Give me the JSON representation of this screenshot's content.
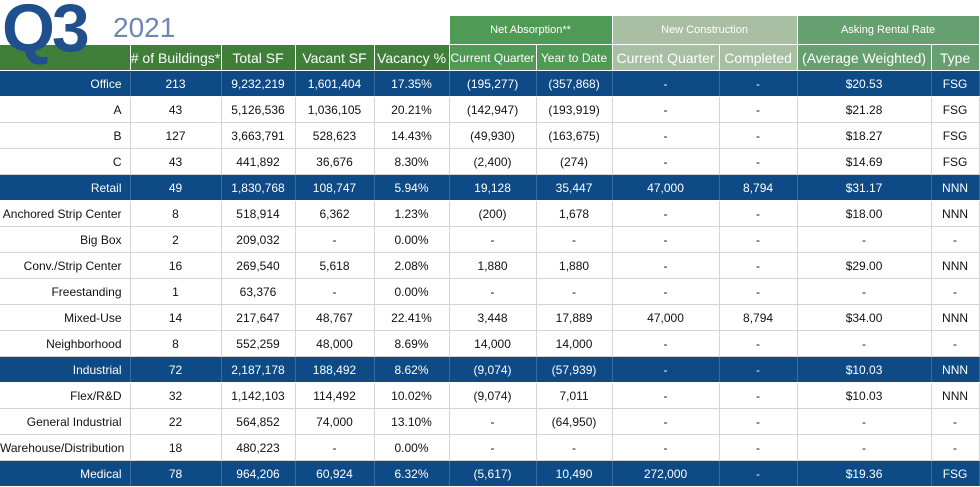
{
  "brand": {
    "quarter": "Q3",
    "year": "2021"
  },
  "groups": {
    "net_absorption": "Net Absorption**",
    "new_construction": "New Construction",
    "asking_rate": "Asking Rental Rate"
  },
  "columns": {
    "buildings": "# of Buildings*",
    "total_sf": "Total SF",
    "vacant_sf": "Vacant SF",
    "vacancy": "Vacancy %",
    "na_cq": "Current Quarter",
    "na_ytd": "Year to Date",
    "nc_cq": "Current Quarter",
    "nc_completed": "Completed",
    "rate": "(Average Weighted)",
    "type": "Type"
  },
  "rows": [
    {
      "label": "Office",
      "cat": true,
      "buildings": "213",
      "total_sf": "9,232,219",
      "vacant_sf": "1,601,404",
      "vacancy": "17.35%",
      "na_cq": "(195,277)",
      "na_ytd": "(357,868)",
      "nc_cq": "-",
      "nc_completed": "-",
      "rate": "$20.53",
      "type": "FSG"
    },
    {
      "label": "A",
      "cat": false,
      "buildings": "43",
      "total_sf": "5,126,536",
      "vacant_sf": "1,036,105",
      "vacancy": "20.21%",
      "na_cq": "(142,947)",
      "na_ytd": "(193,919)",
      "nc_cq": "-",
      "nc_completed": "-",
      "rate": "$21.28",
      "type": "FSG"
    },
    {
      "label": "B",
      "cat": false,
      "buildings": "127",
      "total_sf": "3,663,791",
      "vacant_sf": "528,623",
      "vacancy": "14.43%",
      "na_cq": "(49,930)",
      "na_ytd": "(163,675)",
      "nc_cq": "-",
      "nc_completed": "-",
      "rate": "$18.27",
      "type": "FSG"
    },
    {
      "label": "C",
      "cat": false,
      "buildings": "43",
      "total_sf": "441,892",
      "vacant_sf": "36,676",
      "vacancy": "8.30%",
      "na_cq": "(2,400)",
      "na_ytd": "(274)",
      "nc_cq": "-",
      "nc_completed": "-",
      "rate": "$14.69",
      "type": "FSG"
    },
    {
      "label": "Retail",
      "cat": true,
      "buildings": "49",
      "total_sf": "1,830,768",
      "vacant_sf": "108,747",
      "vacancy": "5.94%",
      "na_cq": "19,128",
      "na_ytd": "35,447",
      "nc_cq": "47,000",
      "nc_completed": "8,794",
      "rate": "$31.17",
      "type": "NNN"
    },
    {
      "label": "Anchored Strip Center",
      "cat": false,
      "buildings": "8",
      "total_sf": "518,914",
      "vacant_sf": "6,362",
      "vacancy": "1.23%",
      "na_cq": "(200)",
      "na_ytd": "1,678",
      "nc_cq": "-",
      "nc_completed": "-",
      "rate": "$18.00",
      "type": "NNN"
    },
    {
      "label": "Big Box",
      "cat": false,
      "buildings": "2",
      "total_sf": "209,032",
      "vacant_sf": "-",
      "vacancy": "0.00%",
      "na_cq": "-",
      "na_ytd": "-",
      "nc_cq": "-",
      "nc_completed": "-",
      "rate": "-",
      "type": "-"
    },
    {
      "label": "Conv./Strip Center",
      "cat": false,
      "buildings": "16",
      "total_sf": "269,540",
      "vacant_sf": "5,618",
      "vacancy": "2.08%",
      "na_cq": "1,880",
      "na_ytd": "1,880",
      "nc_cq": "-",
      "nc_completed": "-",
      "rate": "$29.00",
      "type": "NNN"
    },
    {
      "label": "Freestanding",
      "cat": false,
      "buildings": "1",
      "total_sf": "63,376",
      "vacant_sf": "-",
      "vacancy": "0.00%",
      "na_cq": "-",
      "na_ytd": "-",
      "nc_cq": "-",
      "nc_completed": "-",
      "rate": "-",
      "type": "-"
    },
    {
      "label": "Mixed-Use",
      "cat": false,
      "buildings": "14",
      "total_sf": "217,647",
      "vacant_sf": "48,767",
      "vacancy": "22.41%",
      "na_cq": "3,448",
      "na_ytd": "17,889",
      "nc_cq": "47,000",
      "nc_completed": "8,794",
      "rate": "$34.00",
      "type": "NNN"
    },
    {
      "label": "Neighborhood",
      "cat": false,
      "buildings": "8",
      "total_sf": "552,259",
      "vacant_sf": "48,000",
      "vacancy": "8.69%",
      "na_cq": "14,000",
      "na_ytd": "14,000",
      "nc_cq": "-",
      "nc_completed": "-",
      "rate": "-",
      "type": "-"
    },
    {
      "label": "Industrial",
      "cat": true,
      "buildings": "72",
      "total_sf": "2,187,178",
      "vacant_sf": "188,492",
      "vacancy": "8.62%",
      "na_cq": "(9,074)",
      "na_ytd": "(57,939)",
      "nc_cq": "-",
      "nc_completed": "-",
      "rate": "$10.03",
      "type": "NNN"
    },
    {
      "label": "Flex/R&D",
      "cat": false,
      "buildings": "32",
      "total_sf": "1,142,103",
      "vacant_sf": "114,492",
      "vacancy": "10.02%",
      "na_cq": "(9,074)",
      "na_ytd": "7,011",
      "nc_cq": "-",
      "nc_completed": "-",
      "rate": "$10.03",
      "type": "NNN"
    },
    {
      "label": "General Industrial",
      "cat": false,
      "buildings": "22",
      "total_sf": "564,852",
      "vacant_sf": "74,000",
      "vacancy": "13.10%",
      "na_cq": "-",
      "na_ytd": "(64,950)",
      "nc_cq": "-",
      "nc_completed": "-",
      "rate": "-",
      "type": "-"
    },
    {
      "label": "Warehouse/Distribution",
      "cat": false,
      "buildings": "18",
      "total_sf": "480,223",
      "vacant_sf": "-",
      "vacancy": "0.00%",
      "na_cq": "-",
      "na_ytd": "-",
      "nc_cq": "-",
      "nc_completed": "-",
      "rate": "-",
      "type": "-"
    },
    {
      "label": "Medical",
      "cat": true,
      "buildings": "78",
      "total_sf": "964,206",
      "vacant_sf": "60,924",
      "vacancy": "6.32%",
      "na_cq": "(5,617)",
      "na_ytd": "10,490",
      "nc_cq": "272,000",
      "nc_completed": "-",
      "rate": "$19.36",
      "type": "FSG"
    }
  ],
  "colors": {
    "header_green": "#3f7f3a",
    "net_absorption_green": "#4f9a54",
    "new_construction_green": "#a8bfa3",
    "asking_rate_green": "#67a070",
    "category_blue": "#0d4a86",
    "brand_blue": "#1f4f8c"
  }
}
